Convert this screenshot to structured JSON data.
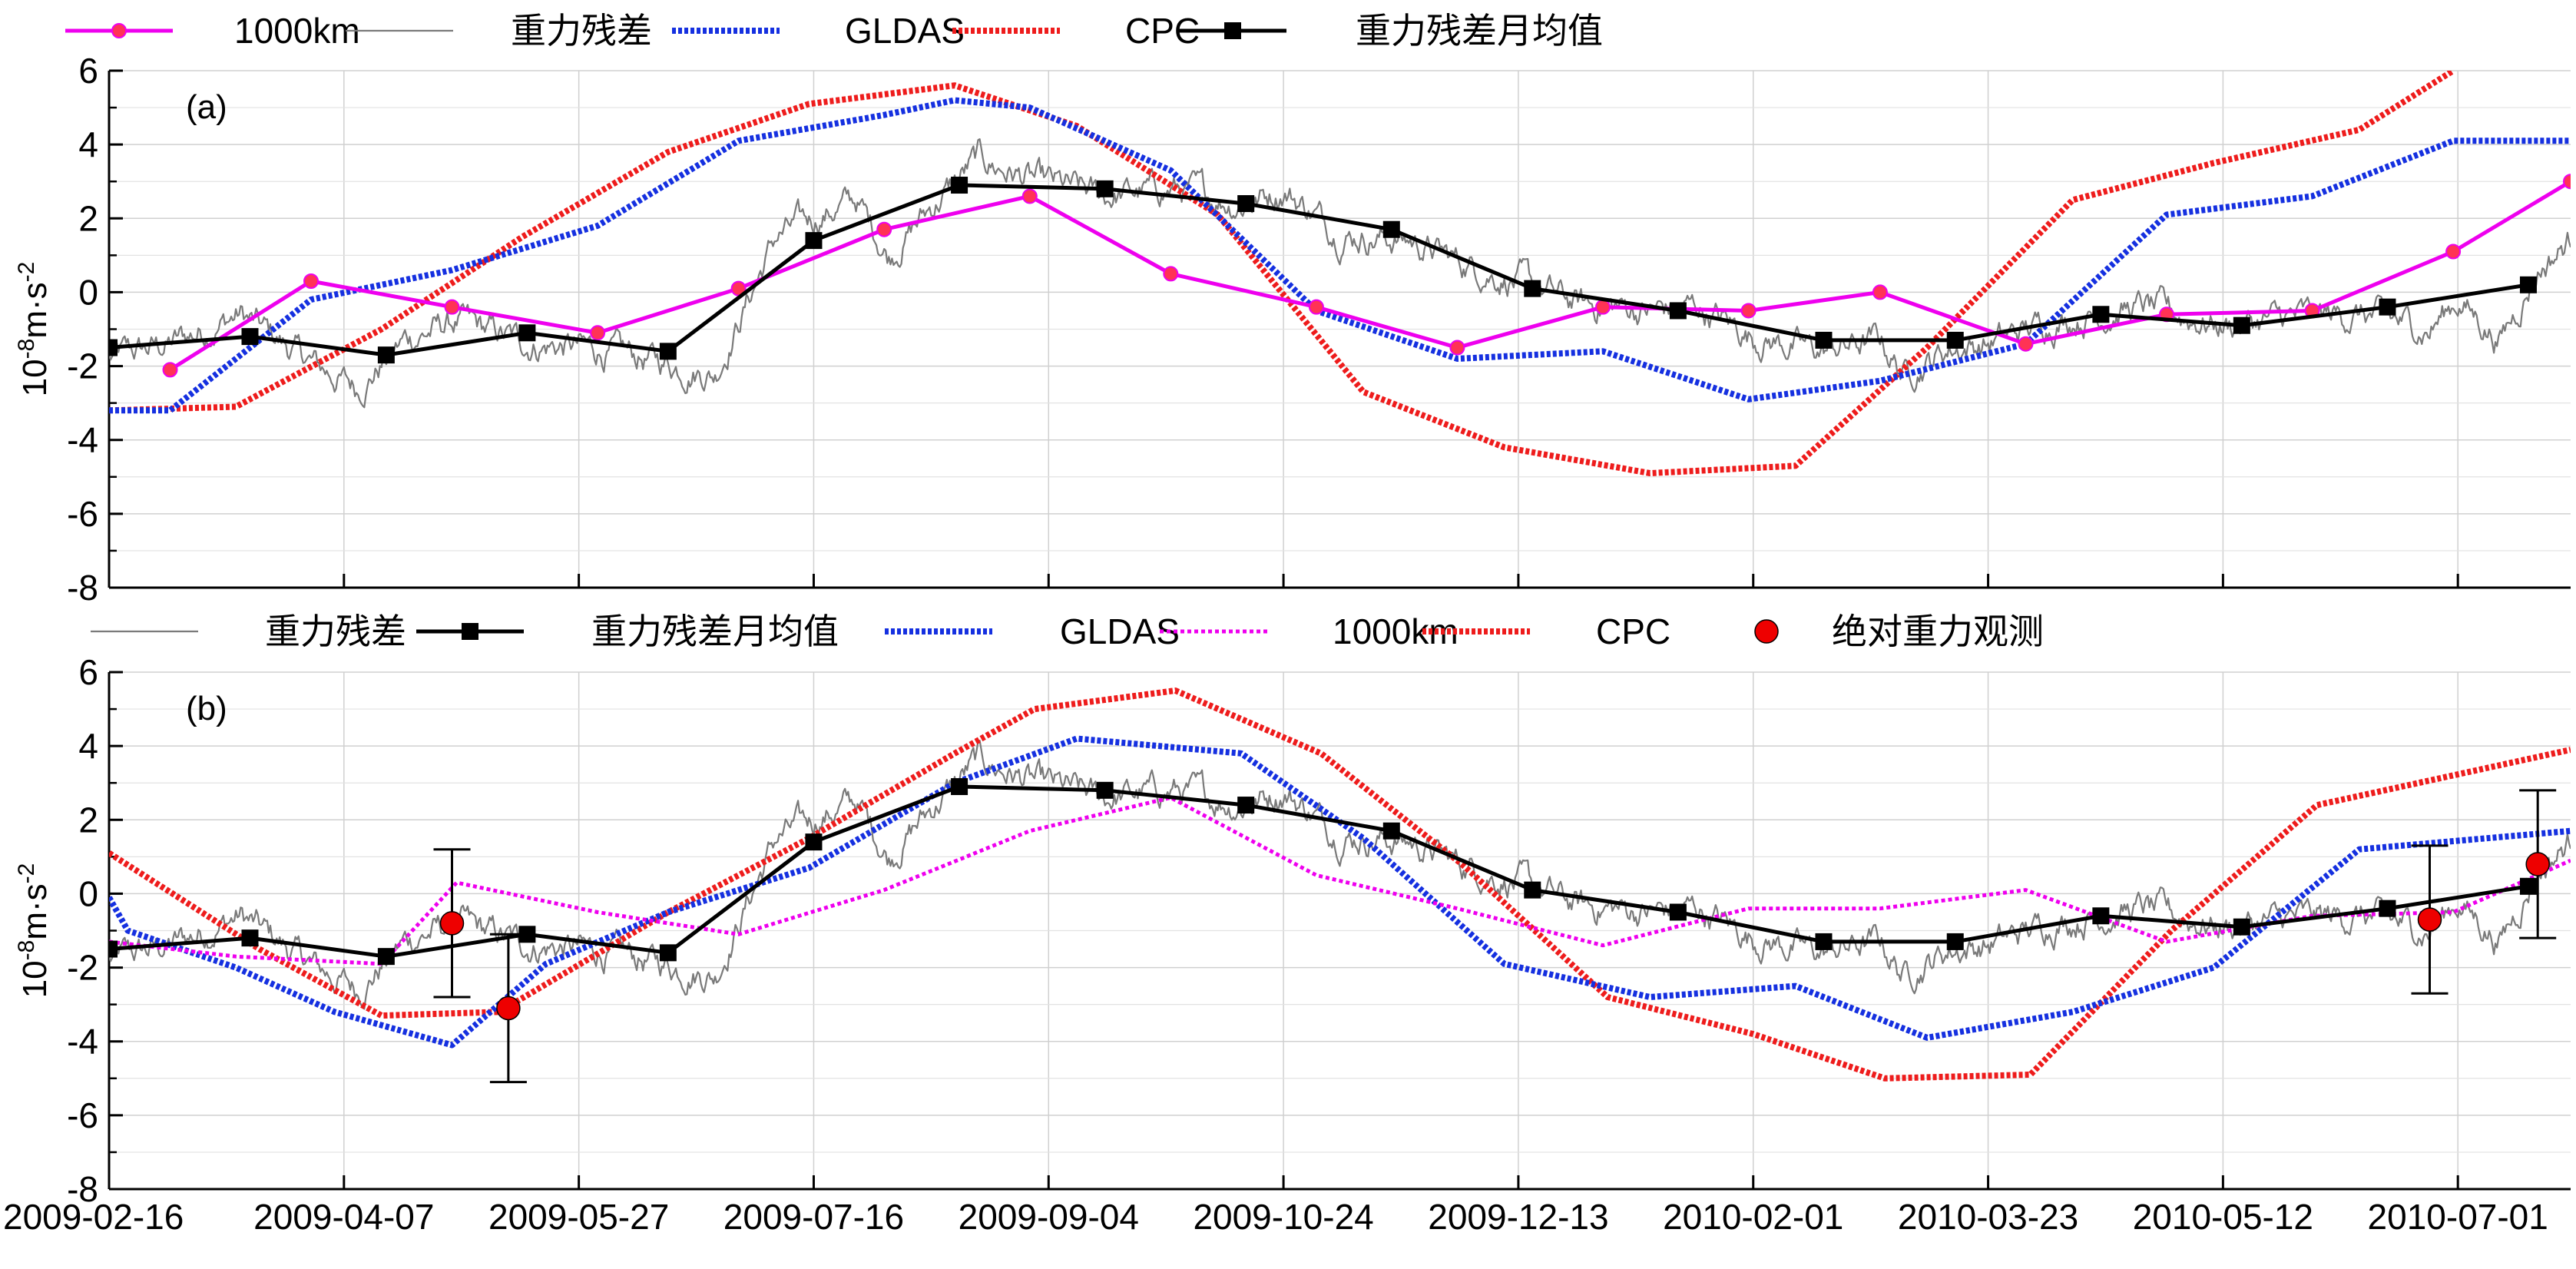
{
  "chart_data": {
    "type": "line",
    "x_tick_labels": [
      "2009-02-16",
      "2009-04-07",
      "2009-05-27",
      "2009-07-16",
      "2009-09-04",
      "2009-10-24",
      "2009-12-13",
      "2010-02-01",
      "2010-03-23",
      "2010-05-12",
      "2010-07-01"
    ],
    "x_range": [
      "2009-02-16",
      "2010-07-25"
    ],
    "grid": true,
    "colors": {
      "magenta": "#ee00ee",
      "gray": "#7a7a7a",
      "blue": "#1530e0",
      "red": "#ee1c1c",
      "black": "#000000",
      "marker_pink": "#ff3355",
      "abs_red": "#ee0000"
    },
    "panels": [
      {
        "label": "(a)",
        "ylabel": "10⁻⁸m·s⁻²",
        "ylim": [
          -8,
          6
        ],
        "y_ticks": [
          -8,
          -6,
          -4,
          -2,
          0,
          2,
          4,
          6
        ],
        "legend": [
          "1000km",
          "重力残差",
          "GLDAS",
          "CPC",
          "重力残差月均值"
        ],
        "series": [
          {
            "name": "1000km",
            "style": "magenta-marker",
            "x": [
              "2009-03-01",
              "2009-03-31",
              "2009-04-30",
              "2009-05-31",
              "2009-06-30",
              "2009-07-31",
              "2009-08-31",
              "2009-09-30",
              "2009-10-31",
              "2009-11-30",
              "2009-12-31",
              "2010-01-31",
              "2010-02-28",
              "2010-03-31",
              "2010-04-30",
              "2010-05-31",
              "2010-06-30",
              "2010-07-25"
            ],
            "y": [
              -2.1,
              0.3,
              -0.4,
              -1.1,
              0.1,
              1.7,
              2.6,
              0.5,
              -0.4,
              -1.5,
              -0.4,
              -0.5,
              0.0,
              -1.4,
              -0.6,
              -0.5,
              1.1,
              3.0
            ]
          },
          {
            "name": "重力残差",
            "style": "gray",
            "source": "residual"
          },
          {
            "name": "GLDAS",
            "style": "blue-dot",
            "x": [
              "2009-02-16",
              "2009-03-01",
              "2009-03-31",
              "2009-04-30",
              "2009-05-31",
              "2009-06-30",
              "2009-07-31",
              "2009-08-15",
              "2009-08-31",
              "2009-09-30",
              "2009-10-31",
              "2009-11-30",
              "2009-12-31",
              "2010-01-31",
              "2010-02-28",
              "2010-03-31",
              "2010-04-30",
              "2010-05-31",
              "2010-06-30",
              "2010-07-25"
            ],
            "y": [
              -3.2,
              -3.2,
              -0.2,
              0.6,
              1.8,
              4.1,
              4.8,
              5.2,
              5.0,
              3.3,
              -0.5,
              -1.8,
              -1.6,
              -2.9,
              -2.4,
              -1.4,
              2.1,
              2.6,
              4.1,
              4.1
            ]
          },
          {
            "name": "CPC",
            "style": "red-dot",
            "x": [
              "2009-02-16",
              "2009-03-15",
              "2009-04-15",
              "2009-05-15",
              "2009-06-15",
              "2009-07-15",
              "2009-08-15",
              "2009-09-10",
              "2009-10-10",
              "2009-11-10",
              "2009-12-10",
              "2010-01-10",
              "2010-02-10",
              "2010-03-10",
              "2010-04-10",
              "2010-05-10",
              "2010-06-10",
              "2010-06-30"
            ],
            "y": [
              -3.2,
              -3.1,
              -1.0,
              1.5,
              3.8,
              5.1,
              5.6,
              4.5,
              2.1,
              -2.7,
              -4.2,
              -4.9,
              -4.7,
              -1.5,
              2.5,
              3.5,
              4.4,
              6.0
            ]
          },
          {
            "name": "重力残差月均值",
            "style": "black-square",
            "source": "monthly_mean"
          }
        ]
      },
      {
        "label": "(b)",
        "ylabel": "10⁻⁸m·s⁻²",
        "ylim": [
          -8,
          6
        ],
        "y_ticks": [
          -8,
          -6,
          -4,
          -2,
          0,
          2,
          4,
          6
        ],
        "legend": [
          "重力残差",
          "重力残差月均值",
          "GLDAS",
          "1000km",
          "CPC",
          "绝对重力观测"
        ],
        "series": [
          {
            "name": "重力残差",
            "style": "gray",
            "source": "residual"
          },
          {
            "name": "重力残差月均值",
            "style": "black-square",
            "source": "monthly_mean"
          },
          {
            "name": "GLDAS",
            "style": "blue-dot",
            "x": [
              "2009-02-16",
              "2009-02-20",
              "2009-03-15",
              "2009-04-05",
              "2009-04-30",
              "2009-05-20",
              "2009-06-15",
              "2009-07-15",
              "2009-08-15",
              "2009-09-10",
              "2009-10-15",
              "2009-11-10",
              "2009-12-10",
              "2010-01-10",
              "2010-02-10",
              "2010-03-10",
              "2010-04-10",
              "2010-05-10",
              "2010-06-10",
              "2010-07-25"
            ],
            "y": [
              -0.1,
              -1.0,
              -2.0,
              -3.2,
              -4.1,
              -1.9,
              -0.5,
              0.7,
              3.0,
              4.2,
              3.8,
              1.5,
              -1.9,
              -2.8,
              -2.5,
              -3.9,
              -3.2,
              -2.0,
              1.2,
              1.7
            ]
          },
          {
            "name": "1000km",
            "style": "magenta-dot",
            "x": [
              "2009-02-16",
              "2009-03-15",
              "2009-04-15",
              "2009-05-01",
              "2009-05-31",
              "2009-06-30",
              "2009-07-31",
              "2009-08-31",
              "2009-09-30",
              "2009-10-31",
              "2009-11-30",
              "2009-12-31",
              "2010-01-31",
              "2010-02-28",
              "2010-03-31",
              "2010-04-30",
              "2010-05-31",
              "2010-06-30",
              "2010-07-25"
            ],
            "y": [
              -1.3,
              -1.7,
              -1.9,
              0.3,
              -0.5,
              -1.1,
              0.1,
              1.7,
              2.6,
              0.5,
              -0.4,
              -1.4,
              -0.4,
              -0.4,
              0.1,
              -1.3,
              -0.6,
              -0.5,
              0.9
            ]
          },
          {
            "name": "CPC",
            "style": "red-dot",
            "x": [
              "2009-02-16",
              "2009-03-20",
              "2009-04-15",
              "2009-05-10",
              "2009-06-15",
              "2009-07-15",
              "2009-08-15",
              "2009-09-01",
              "2009-10-01",
              "2009-11-01",
              "2009-12-01",
              "2010-01-01",
              "2010-02-01",
              "2010-03-01",
              "2010-04-01",
              "2010-05-01",
              "2010-06-01",
              "2010-07-25"
            ],
            "y": [
              1.1,
              -1.5,
              -3.3,
              -3.2,
              -0.5,
              1.5,
              3.8,
              5.0,
              5.5,
              3.8,
              0.8,
              -2.8,
              -3.8,
              -5.0,
              -4.9,
              -1.0,
              2.4,
              3.9
            ]
          },
          {
            "name": "绝对重力观测",
            "style": "abs-point",
            "x": [
              "2009-04-30",
              "2009-05-12",
              "2010-06-25",
              "2010-07-18"
            ],
            "y": [
              -0.8,
              -3.1,
              -0.7,
              0.8
            ],
            "error": [
              2.0,
              2.0,
              2.0,
              2.0
            ]
          }
        ]
      }
    ],
    "monthly_mean": {
      "x": [
        "2009-02-16",
        "2009-03-18",
        "2009-04-16",
        "2009-05-16",
        "2009-06-15",
        "2009-07-16",
        "2009-08-16",
        "2009-09-16",
        "2009-10-16",
        "2009-11-16",
        "2009-12-16",
        "2010-01-16",
        "2010-02-16",
        "2010-03-16",
        "2010-04-16",
        "2010-05-16",
        "2010-06-16",
        "2010-07-16"
      ],
      "y": [
        -1.5,
        -1.2,
        -1.7,
        -1.1,
        -1.6,
        1.4,
        2.9,
        2.8,
        2.4,
        1.7,
        0.1,
        -0.5,
        -1.3,
        -1.3,
        -0.6,
        -0.9,
        -0.4,
        0.2
      ]
    },
    "residual": {
      "x": [
        "2009-02-16",
        "2009-03-01",
        "2009-03-16",
        "2009-04-01",
        "2009-04-10",
        "2009-04-20",
        "2009-05-01",
        "2009-05-16",
        "2009-05-27",
        "2009-06-10",
        "2009-06-25",
        "2009-07-01",
        "2009-07-08",
        "2009-07-16",
        "2009-07-25",
        "2009-08-01",
        "2009-08-10",
        "2009-08-20",
        "2009-09-01",
        "2009-09-15",
        "2009-10-01",
        "2009-10-15",
        "2009-10-24",
        "2009-11-05",
        "2009-11-20",
        "2009-12-01",
        "2009-12-13",
        "2009-12-25",
        "2010-01-10",
        "2010-01-20",
        "2010-02-01",
        "2010-02-15",
        "2010-02-28",
        "2010-03-05",
        "2010-03-15",
        "2010-03-23",
        "2010-04-05",
        "2010-04-15",
        "2010-04-25",
        "2010-05-12",
        "2010-05-25",
        "2010-06-10",
        "2010-06-25",
        "2010-07-01",
        "2010-07-10",
        "2010-07-18",
        "2010-07-25"
      ],
      "y": [
        -1.8,
        -1.4,
        -0.6,
        -2.0,
        -2.6,
        -1.3,
        -0.8,
        -1.4,
        -1.5,
        -1.8,
        -2.2,
        -0.5,
        1.5,
        2.0,
        2.5,
        1.0,
        2.3,
        3.6,
        3.0,
        2.6,
        2.8,
        2.4,
        2.8,
        1.6,
        1.4,
        0.8,
        0.3,
        -0.3,
        -0.5,
        -0.4,
        -1.2,
        -1.6,
        -1.3,
        -2.2,
        -1.5,
        -1.4,
        -0.8,
        -0.6,
        -0.4,
        -0.9,
        -0.7,
        -0.6,
        -1.0,
        -0.2,
        -1.3,
        0.6,
        1.4
      ]
    }
  }
}
